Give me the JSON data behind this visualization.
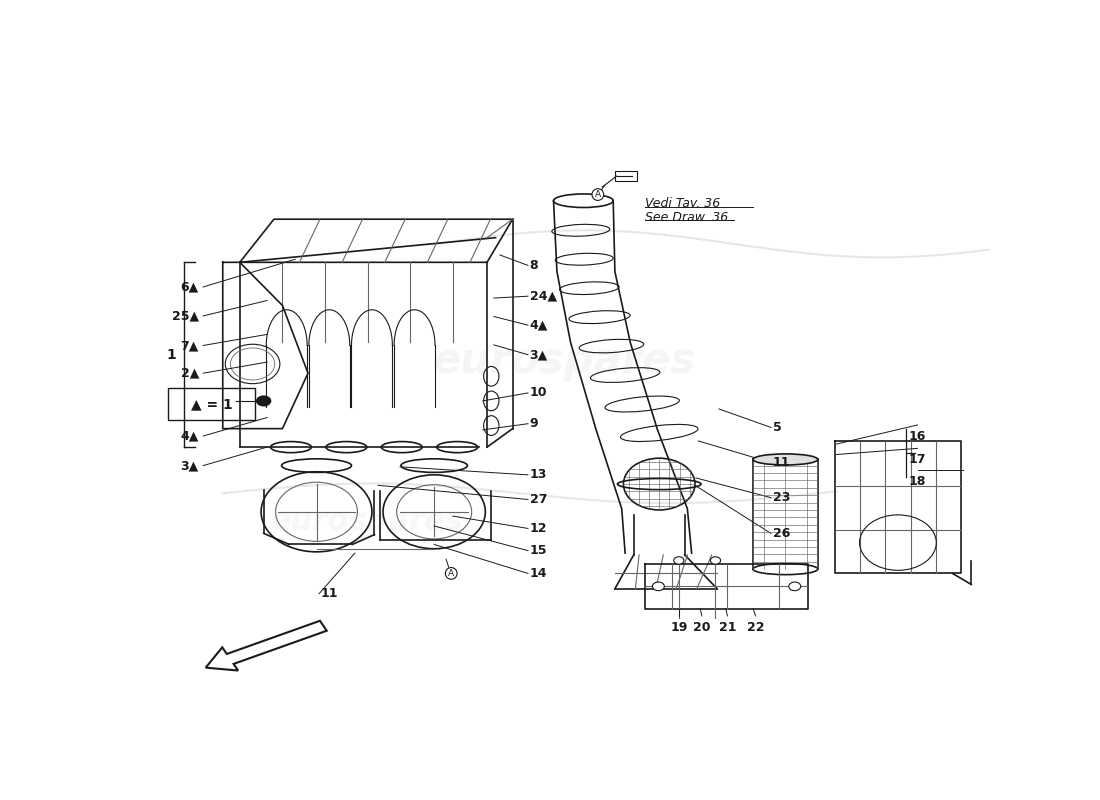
{
  "bg_color": "#ffffff",
  "watermark_text": "eurospares",
  "ref_note_line1": "Vedi Tav. 36",
  "ref_note_line2": "See Draw. 36",
  "legend_text": "▲ = 1"
}
